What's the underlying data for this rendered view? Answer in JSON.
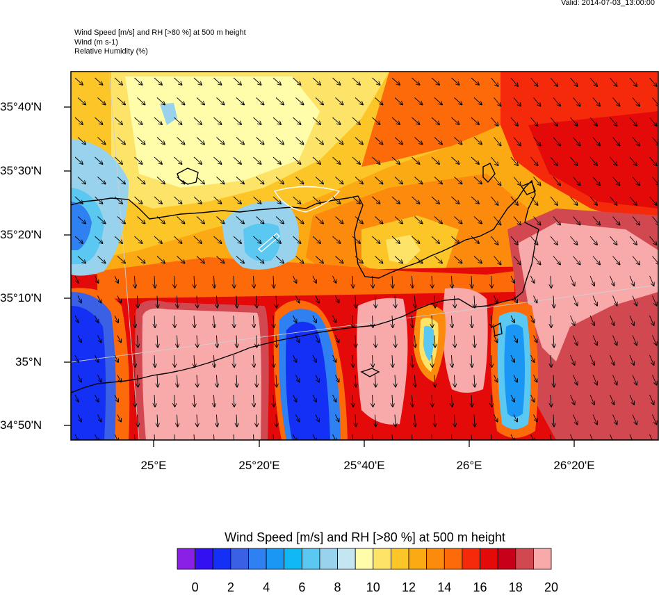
{
  "valid_time": "Valid: 2014-07-03_13:00:00",
  "titles": {
    "line1": "Wind Speed [m/s] and RH [>80 %] at 500 m height",
    "line2": "Wind   (m s-1)",
    "line3": "Relative Humidity   (%)"
  },
  "map": {
    "lat_labels": [
      "35°40'N",
      "35°30'N",
      "35°20'N",
      "35°10'N",
      "35°N",
      "34°50'N"
    ],
    "lon_labels": [
      "25°E",
      "25°20'E",
      "25°40'E",
      "26°E",
      "26°20'E"
    ],
    "colors": {
      "lowest": "#8e20e8",
      "highest": "#f8aaaa"
    }
  },
  "colorbar": {
    "title": "Wind Speed [m/s] and RH [>80 %] at 500 m height",
    "labels": [
      "0",
      "2",
      "4",
      "6",
      "8",
      "10",
      "12",
      "14",
      "16",
      "18",
      "20"
    ],
    "colors": [
      "#8a1fe6",
      "#3210f2",
      "#1530f5",
      "#3a60e6",
      "#2f80f0",
      "#1a96f5",
      "#10b8f4",
      "#5ac8f0",
      "#98d2ec",
      "#c4e6f2",
      "#fffcaa",
      "#fde468",
      "#fcc628",
      "#fcaa14",
      "#fc8a0c",
      "#fc6a0a",
      "#f42a0a",
      "#e40a0a",
      "#c8001a",
      "#d24850",
      "#f8aaaa"
    ]
  }
}
